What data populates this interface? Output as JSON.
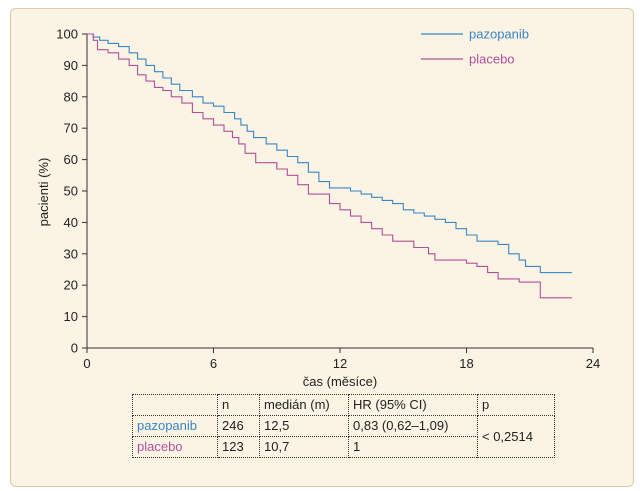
{
  "chart_data": {
    "type": "line",
    "xlabel": "čas (měsíce)",
    "ylabel": "pacienti (%)",
    "xlim": [
      0,
      24
    ],
    "ylim": [
      0,
      100
    ],
    "xticks": [
      "0",
      "6",
      "12",
      "18",
      "24"
    ],
    "yticks": [
      "0",
      "10",
      "20",
      "30",
      "40",
      "50",
      "60",
      "70",
      "80",
      "90",
      "100"
    ],
    "grid": false,
    "legend_position": "top-right",
    "series": [
      {
        "name": "pazopanib",
        "color": "#3a86c8",
        "step": true,
        "points": [
          [
            0,
            100
          ],
          [
            0.3,
            99
          ],
          [
            0.6,
            98
          ],
          [
            1.0,
            97
          ],
          [
            1.5,
            96
          ],
          [
            2.0,
            94
          ],
          [
            2.4,
            92
          ],
          [
            2.8,
            90
          ],
          [
            3.2,
            88
          ],
          [
            3.6,
            86
          ],
          [
            4.0,
            84
          ],
          [
            4.4,
            82
          ],
          [
            5.0,
            80
          ],
          [
            5.5,
            78
          ],
          [
            6.0,
            77
          ],
          [
            6.5,
            75
          ],
          [
            7.0,
            73
          ],
          [
            7.3,
            71
          ],
          [
            7.6,
            69
          ],
          [
            7.9,
            67
          ],
          [
            8.5,
            65
          ],
          [
            9.0,
            63
          ],
          [
            9.5,
            61
          ],
          [
            10.0,
            59
          ],
          [
            10.5,
            56
          ],
          [
            11.0,
            53
          ],
          [
            11.5,
            51
          ],
          [
            12.5,
            50
          ],
          [
            13.0,
            49
          ],
          [
            13.5,
            48
          ],
          [
            14.0,
            47
          ],
          [
            14.5,
            46
          ],
          [
            15.0,
            44
          ],
          [
            15.5,
            43
          ],
          [
            16.0,
            42
          ],
          [
            16.5,
            41
          ],
          [
            17.0,
            40
          ],
          [
            17.5,
            38
          ],
          [
            18.0,
            36
          ],
          [
            18.5,
            34
          ],
          [
            19.5,
            33
          ],
          [
            20.0,
            30
          ],
          [
            20.5,
            28
          ],
          [
            20.8,
            26
          ],
          [
            21.5,
            24
          ],
          [
            23,
            24
          ]
        ]
      },
      {
        "name": "placebo",
        "color": "#b0509c",
        "step": true,
        "points": [
          [
            0,
            100
          ],
          [
            0.3,
            98
          ],
          [
            0.5,
            95
          ],
          [
            1.0,
            94
          ],
          [
            1.5,
            92
          ],
          [
            2.0,
            90
          ],
          [
            2.4,
            87
          ],
          [
            2.8,
            85
          ],
          [
            3.2,
            83
          ],
          [
            3.6,
            82
          ],
          [
            4.0,
            80
          ],
          [
            4.5,
            78
          ],
          [
            5.0,
            75
          ],
          [
            5.5,
            73
          ],
          [
            6.0,
            71
          ],
          [
            6.5,
            69
          ],
          [
            6.9,
            67
          ],
          [
            7.2,
            65
          ],
          [
            7.5,
            62
          ],
          [
            8.0,
            59
          ],
          [
            9.0,
            57
          ],
          [
            9.5,
            55
          ],
          [
            10.0,
            52
          ],
          [
            10.5,
            49
          ],
          [
            11.5,
            46
          ],
          [
            12.0,
            44
          ],
          [
            12.5,
            42
          ],
          [
            13.0,
            40
          ],
          [
            13.5,
            38
          ],
          [
            14.0,
            36
          ],
          [
            14.5,
            34
          ],
          [
            15.5,
            32
          ],
          [
            16.2,
            30
          ],
          [
            16.5,
            28
          ],
          [
            18.0,
            27
          ],
          [
            18.5,
            26
          ],
          [
            19.0,
            24
          ],
          [
            19.5,
            22
          ],
          [
            20.5,
            21
          ],
          [
            21.5,
            16
          ],
          [
            23,
            16
          ]
        ]
      }
    ]
  },
  "table": {
    "headers": [
      "",
      "n",
      "medián (m)",
      "HR (95% CI)",
      "p"
    ],
    "rows": [
      {
        "name": "pazopanib",
        "n": "246",
        "median": "12,5",
        "hr": "0,83 (0,62–1,09)"
      },
      {
        "name": "placebo",
        "n": "123",
        "median": "10,7",
        "hr": "1"
      }
    ],
    "p_value": "< 0,2514"
  }
}
